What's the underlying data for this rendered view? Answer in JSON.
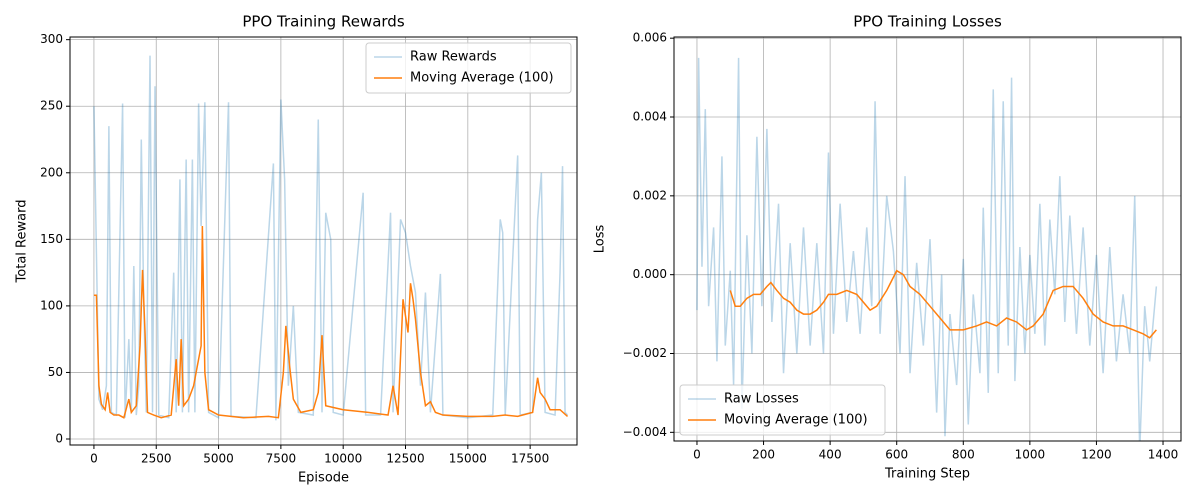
{
  "chart_data": [
    {
      "type": "line",
      "title": "PPO Training Rewards",
      "xlabel": "Episode",
      "ylabel": "Total Reward",
      "xlim": [
        -960,
        19380
      ],
      "ylim": [
        -4.5,
        302
      ],
      "xticks": [
        0,
        2500,
        5000,
        7500,
        10000,
        12500,
        15000,
        17500
      ],
      "yticks": [
        0,
        50,
        100,
        150,
        200,
        250,
        300
      ],
      "grid": true,
      "legend": "upper right",
      "series": [
        {
          "name": "Raw Rewards",
          "color": "#1f77b4",
          "alpha": 0.3,
          "x": [
            0,
            100,
            200,
            350,
            500,
            600,
            700,
            900,
            1150,
            1250,
            1400,
            1500,
            1600,
            1700,
            1800,
            1900,
            2000,
            2100,
            2250,
            2350,
            2450,
            2600,
            3000,
            3200,
            3300,
            3450,
            3550,
            3700,
            3800,
            3950,
            4050,
            4200,
            4300,
            4450,
            4600,
            5000,
            5400,
            5500,
            6500,
            7200,
            7300,
            7500,
            7650,
            7800,
            8000,
            8200,
            8800,
            9000,
            9150,
            9300,
            9500,
            9600,
            10000,
            10800,
            10900,
            11500,
            11900,
            12000,
            12300,
            12500,
            12700,
            12900,
            13100,
            13300,
            13500,
            13900,
            14000,
            15000,
            16000,
            16300,
            16400,
            16500,
            17000,
            17100,
            17600,
            17800,
            17950,
            18100,
            18500,
            18700,
            18800,
            18900,
            19000
          ],
          "values": [
            250,
            140,
            30,
            22,
            40,
            235,
            20,
            18,
            252,
            16,
            75,
            20,
            130,
            18,
            40,
            225,
            100,
            20,
            288,
            20,
            265,
            18,
            16,
            125,
            20,
            195,
            20,
            210,
            20,
            210,
            20,
            252,
            160,
            253,
            20,
            16,
            253,
            17,
            16,
            207,
            14,
            255,
            195,
            40,
            100,
            20,
            18,
            240,
            20,
            170,
            150,
            20,
            18,
            185,
            18,
            18,
            170,
            20,
            165,
            155,
            130,
            110,
            40,
            110,
            20,
            124,
            18,
            16,
            18,
            165,
            155,
            18,
            213,
            18,
            20,
            165,
            200,
            20,
            18,
            125,
            205,
            20,
            18
          ]
        },
        {
          "name": "Moving Average (100)",
          "color": "#ff7f0e",
          "x": [
            0,
            100,
            200,
            300,
            450,
            550,
            650,
            800,
            1000,
            1200,
            1400,
            1500,
            1700,
            1850,
            1950,
            2050,
            2150,
            2400,
            2700,
            3100,
            3300,
            3400,
            3500,
            3600,
            3800,
            4000,
            4200,
            4300,
            4350,
            4450,
            4600,
            5000,
            6000,
            7000,
            7400,
            7600,
            7700,
            7850,
            8000,
            8300,
            8800,
            9000,
            9150,
            9300,
            10000,
            11000,
            11800,
            12000,
            12200,
            12400,
            12600,
            12700,
            12800,
            12900,
            13100,
            13300,
            13500,
            13700,
            14000,
            15000,
            16000,
            16500,
            17000,
            17600,
            17800,
            17900,
            18100,
            18300,
            18700,
            19000
          ],
          "values": [
            108,
            108,
            40,
            26,
            22,
            35,
            20,
            18,
            18,
            16,
            30,
            20,
            25,
            70,
            127,
            80,
            20,
            18,
            16,
            18,
            60,
            25,
            75,
            25,
            30,
            40,
            60,
            70,
            160,
            50,
            22,
            18,
            16,
            17,
            16,
            50,
            85,
            55,
            30,
            20,
            22,
            35,
            78,
            25,
            22,
            20,
            18,
            40,
            18,
            105,
            80,
            117,
            105,
            90,
            50,
            25,
            28,
            20,
            18,
            17,
            17,
            18,
            17,
            20,
            46,
            35,
            30,
            22,
            22,
            17
          ]
        }
      ]
    },
    {
      "type": "line",
      "title": "PPO Training Losses",
      "xlabel": "Training Step",
      "ylabel": "Loss",
      "xlim": [
        -69,
        1454
      ],
      "ylim": [
        -0.00422,
        0.00603
      ],
      "xticks": [
        0,
        200,
        400,
        600,
        800,
        1000,
        1200,
        1400
      ],
      "yticks": [
        {
          "value": -0.004,
          "label": "−0.004"
        },
        {
          "value": -0.002,
          "label": "−0.002"
        },
        {
          "value": 0,
          "label": "0.000"
        },
        {
          "value": 0.002,
          "label": "0.002"
        },
        {
          "value": 0.004,
          "label": "0.004"
        },
        {
          "value": 0.006,
          "label": "0.006"
        }
      ],
      "grid": true,
      "legend": "lower left",
      "series": [
        {
          "name": "Raw Losses",
          "color": "#1f77b4",
          "alpha": 0.3,
          "x": [
            0,
            5,
            15,
            25,
            35,
            50,
            60,
            75,
            85,
            100,
            110,
            125,
            135,
            150,
            165,
            180,
            195,
            210,
            225,
            245,
            260,
            280,
            300,
            320,
            340,
            360,
            380,
            395,
            410,
            430,
            450,
            470,
            490,
            510,
            525,
            535,
            550,
            570,
            590,
            610,
            625,
            640,
            660,
            680,
            700,
            720,
            735,
            745,
            760,
            780,
            800,
            815,
            830,
            850,
            860,
            875,
            890,
            905,
            920,
            935,
            945,
            955,
            970,
            985,
            1000,
            1015,
            1030,
            1045,
            1060,
            1075,
            1090,
            1105,
            1120,
            1140,
            1160,
            1180,
            1200,
            1220,
            1240,
            1260,
            1280,
            1300,
            1315,
            1330,
            1345,
            1360,
            1380
          ],
          "values": [
            -0.0009,
            0.0055,
            0.0002,
            0.0042,
            -0.0008,
            0.0012,
            -0.0022,
            0.003,
            -0.0018,
            0.0001,
            -0.0028,
            0.0055,
            -0.0034,
            0.001,
            -0.002,
            0.0035,
            -0.0008,
            0.0037,
            -0.0012,
            0.0018,
            -0.0025,
            0.0008,
            -0.002,
            0.0012,
            -0.0018,
            0.0008,
            -0.002,
            0.0031,
            -0.0015,
            0.0018,
            -0.0012,
            0.0006,
            -0.0015,
            0.0012,
            -0.0008,
            0.0044,
            -0.0015,
            0.002,
            0.0006,
            -0.002,
            0.0025,
            -0.0025,
            0.0003,
            -0.0018,
            0.0009,
            -0.0035,
            0,
            -0.0041,
            -0.001,
            -0.0028,
            0.0004,
            -0.0038,
            -0.0005,
            -0.0025,
            0.0017,
            -0.003,
            0.0047,
            -0.0025,
            0.0044,
            -0.0018,
            0.005,
            -0.0027,
            0.0007,
            -0.002,
            0.0005,
            -0.0015,
            0.0018,
            -0.0018,
            0.0014,
            -0.0005,
            0.0025,
            -0.0012,
            0.0015,
            -0.0015,
            0.0012,
            -0.0018,
            0.0005,
            -0.0025,
            0.0007,
            -0.0022,
            -0.0005,
            -0.002,
            0.002,
            -0.0045,
            -0.0008,
            -0.0022,
            -0.0003
          ]
        },
        {
          "name": "Moving Average (100)",
          "color": "#ff7f0e",
          "x": [
            100,
            115,
            130,
            150,
            170,
            190,
            210,
            222,
            240,
            260,
            280,
            300,
            320,
            340,
            360,
            380,
            395,
            420,
            450,
            480,
            500,
            520,
            540,
            570,
            600,
            620,
            640,
            670,
            700,
            730,
            760,
            800,
            840,
            870,
            900,
            930,
            960,
            990,
            1010,
            1040,
            1070,
            1100,
            1130,
            1160,
            1190,
            1220,
            1250,
            1280,
            1310,
            1340,
            1360,
            1380
          ],
          "values": [
            -0.0004,
            -0.0008,
            -0.0008,
            -0.0006,
            -0.0005,
            -0.0005,
            -0.0003,
            -0.0002,
            -0.0004,
            -0.0006,
            -0.0007,
            -0.0009,
            -0.001,
            -0.001,
            -0.0009,
            -0.0007,
            -0.0005,
            -0.0005,
            -0.0004,
            -0.0005,
            -0.0007,
            -0.0009,
            -0.0008,
            -0.0004,
            0.0001,
            0,
            -0.0003,
            -0.0005,
            -0.0008,
            -0.0011,
            -0.0014,
            -0.0014,
            -0.0013,
            -0.0012,
            -0.0013,
            -0.0011,
            -0.0012,
            -0.0014,
            -0.0013,
            -0.001,
            -0.0004,
            -0.0003,
            -0.0003,
            -0.0006,
            -0.001,
            -0.0012,
            -0.0013,
            -0.0013,
            -0.0014,
            -0.0015,
            -0.0016,
            -0.0014
          ]
        }
      ]
    }
  ]
}
